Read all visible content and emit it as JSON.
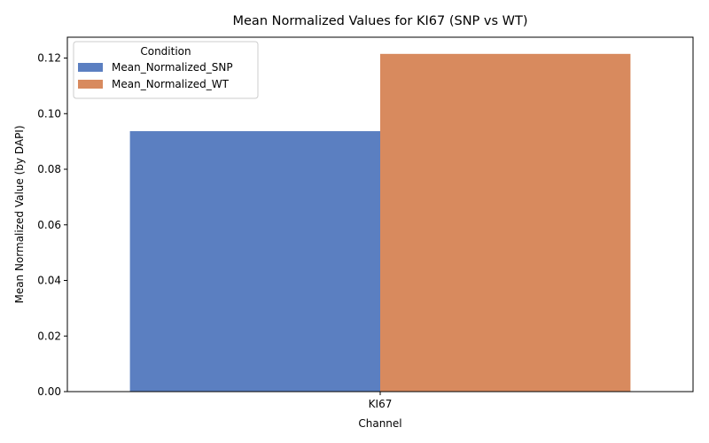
{
  "chart_data": {
    "type": "bar",
    "title": "Mean Normalized Values for KI67 (SNP vs WT)",
    "xlabel": "Channel",
    "ylabel": "Mean Normalized Value (by DAPI)",
    "categories": [
      "KI67"
    ],
    "series": [
      {
        "name": "Mean_Normalized_SNP",
        "values": [
          0.0937
        ],
        "color": "#5b7fc1"
      },
      {
        "name": "Mean_Normalized_WT",
        "values": [
          0.1215
        ],
        "color": "#d88a5e"
      }
    ],
    "ylim": [
      0,
      0.1275
    ],
    "yticks": [
      "0.00",
      "0.02",
      "0.04",
      "0.06",
      "0.08",
      "0.10",
      "0.12"
    ],
    "legend": {
      "title": "Condition",
      "placement": "top-left"
    },
    "grid": false
  }
}
